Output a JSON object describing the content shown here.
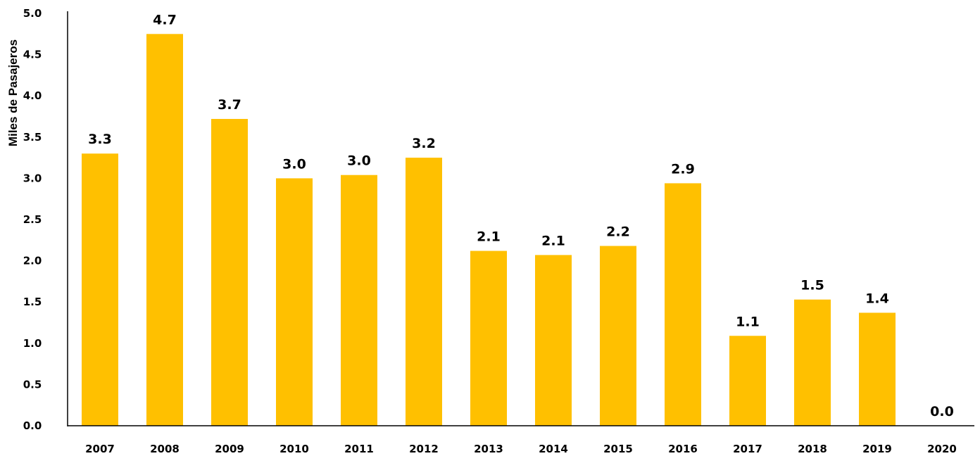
{
  "chart_data": {
    "type": "bar",
    "title": "",
    "xlabel": "",
    "ylabel": "Miles de Pasajeros",
    "ylim": [
      0,
      5.0
    ],
    "y_ticks": [
      "0.0",
      "0.5",
      "1.0",
      "1.5",
      "2.0",
      "2.5",
      "3.0",
      "3.5",
      "4.0",
      "4.5",
      "5.0"
    ],
    "categories": [
      "2007",
      "2008",
      "2009",
      "2010",
      "2011",
      "2012",
      "2013",
      "2014",
      "2015",
      "2016",
      "2017",
      "2018",
      "2019",
      "2020"
    ],
    "values": [
      3.3,
      4.75,
      3.72,
      3.0,
      3.04,
      3.25,
      2.12,
      2.07,
      2.18,
      2.94,
      1.09,
      1.53,
      1.37,
      0.0
    ],
    "data_labels": [
      "3.3",
      "4.7",
      "3.7",
      "3.0",
      "3.0",
      "3.2",
      "2.1",
      "2.1",
      "2.2",
      "2.9",
      "1.1",
      "1.5",
      "1.4",
      "0.0"
    ],
    "bar_color": "#FFC000",
    "grid": false,
    "legend": "none"
  }
}
